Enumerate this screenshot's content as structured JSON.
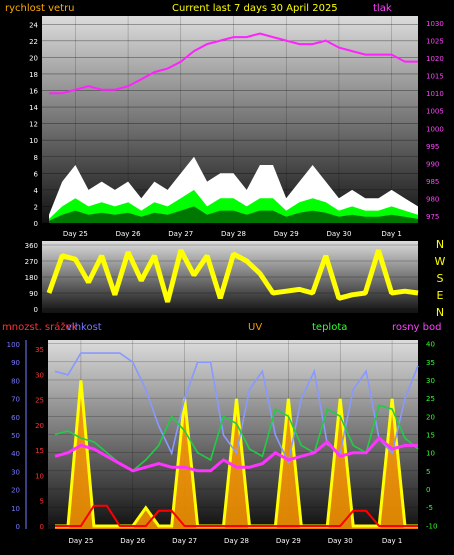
{
  "header": {
    "left_label": "rychlost vetru",
    "center_title": "Current last 7 days 30 April 2025",
    "right_label": "tlak"
  },
  "colors": {
    "wind_white": "#ffffff",
    "wind_green": "#00ff00",
    "wind_dark_green": "#007700",
    "pressure_magenta": "#ff22ff",
    "direction_yellow": "#ffff00",
    "uv_yellow": "#ffff00",
    "uv_orange": "#ff9900",
    "rain_red": "#ff0000",
    "humidity_blue": "#8899ff",
    "temperature_green": "#22cc44",
    "dewpoint_magenta": "#ff33ff",
    "label_orange": "#ffaa00",
    "label_green": "#33ff33",
    "label_red": "#ff3333",
    "label_blue": "#7777ff",
    "label_magenta": "#ff44ff"
  },
  "chart_data": [
    {
      "type": "area",
      "title": "Current last 7 days 30 April 2025",
      "left_axis_label": "rychlost vetru",
      "right_axis_label": "tlak",
      "x_ticks": [
        "Day 25",
        "Day 26",
        "Day 27",
        "Day 28",
        "Day 29",
        "Day 30",
        "Day 1"
      ],
      "y_left_ticks": [
        "0",
        "2",
        "4",
        "6",
        "8",
        "10",
        "12",
        "14",
        "16",
        "18",
        "20",
        "22",
        "24"
      ],
      "y_left_range": [
        0,
        25
      ],
      "y_right_ticks": [
        "975",
        "980",
        "985",
        "990",
        "995",
        "1000",
        "1005",
        "1010",
        "1015",
        "1020",
        "1025",
        "1030"
      ],
      "y_right_range": [
        973,
        1032
      ],
      "x_days": [
        0,
        0.25,
        0.5,
        0.75,
        1,
        1.25,
        1.5,
        1.75,
        2,
        2.25,
        2.5,
        2.75,
        3,
        3.25,
        3.5,
        3.75,
        4,
        4.25,
        4.5,
        4.75,
        5,
        5.25,
        5.5,
        5.75,
        6,
        6.25,
        6.5,
        6.75,
        7
      ],
      "series": [
        {
          "name": "gust",
          "values": [
            1,
            5,
            7,
            4,
            5,
            4,
            5,
            3,
            5,
            4,
            6,
            8,
            5,
            6,
            6,
            4,
            7,
            7,
            3,
            5,
            7,
            5,
            3,
            4,
            3,
            3,
            4,
            3,
            2
          ]
        },
        {
          "name": "average",
          "values": [
            0.5,
            2,
            3,
            2,
            2.5,
            2,
            2.5,
            1.5,
            2.5,
            2,
            3,
            4,
            2,
            3,
            3,
            2,
            3,
            3,
            1.5,
            2.5,
            3,
            2.5,
            1.5,
            2,
            1.5,
            1.5,
            2,
            1.5,
            1
          ]
        },
        {
          "name": "tlak",
          "values": [
            1010,
            1010,
            1011,
            1012,
            1011,
            1011,
            1012,
            1014,
            1016,
            1017,
            1019,
            1022,
            1024,
            1025,
            1026,
            1026,
            1027,
            1026,
            1025,
            1024,
            1024,
            1025,
            1023,
            1022,
            1021,
            1021,
            1021,
            1019,
            1019
          ]
        }
      ]
    },
    {
      "type": "line",
      "right_labels": [
        "N",
        "W",
        "S",
        "E",
        "N"
      ],
      "x_ticks": [
        "Day 25",
        "Day 26",
        "Day 27",
        "Day 28",
        "Day 29",
        "Day 30",
        "Day 1"
      ],
      "y_ticks": [
        "0",
        "90",
        "180",
        "270",
        "360"
      ],
      "y_range": [
        0,
        360
      ],
      "x_days": [
        0,
        0.25,
        0.5,
        0.75,
        1,
        1.25,
        1.5,
        1.75,
        2,
        2.25,
        2.5,
        2.75,
        3,
        3.25,
        3.5,
        3.75,
        4,
        4.25,
        4.5,
        4.75,
        5,
        5.25,
        5.5,
        5.75,
        6,
        6.25,
        6.5,
        6.75,
        7
      ],
      "series": [
        {
          "name": "direction",
          "values": [
            90,
            300,
            280,
            150,
            300,
            80,
            320,
            160,
            300,
            40,
            330,
            190,
            300,
            60,
            310,
            270,
            200,
            90,
            100,
            110,
            90,
            300,
            60,
            80,
            90,
            330,
            90,
            100,
            90
          ]
        }
      ]
    },
    {
      "type": "line",
      "left_labels": [
        "mnozst. srážek",
        "vlhkost"
      ],
      "center_labels": [
        "UV",
        "teplota",
        "rosny bod"
      ],
      "x_ticks": [
        "Day 25",
        "Day 26",
        "Day 27",
        "Day 28",
        "Day 29",
        "Day 30",
        "Day 1"
      ],
      "humidity_ticks": [
        "0",
        "10",
        "20",
        "30",
        "40",
        "50",
        "60",
        "70",
        "80",
        "90",
        "100"
      ],
      "rain_ticks": [
        "0",
        "5",
        "10",
        "15",
        "20",
        "25",
        "30",
        "35"
      ],
      "temperature_ticks": [
        "-10",
        "-5",
        "0",
        "5",
        "10",
        "15",
        "20",
        "25",
        "30",
        "35",
        "40"
      ],
      "temperature_range": [
        -11,
        41
      ],
      "x_days": [
        0,
        0.25,
        0.5,
        0.75,
        1,
        1.25,
        1.5,
        1.75,
        2,
        2.25,
        2.5,
        2.75,
        3,
        3.25,
        3.5,
        3.75,
        4,
        4.25,
        4.5,
        4.75,
        5,
        5.25,
        5.5,
        5.75,
        6,
        6.25,
        6.5,
        6.75,
        7
      ],
      "series": [
        {
          "name": "vlhkost",
          "values": [
            85,
            83,
            95,
            95,
            95,
            95,
            90,
            75,
            55,
            40,
            70,
            90,
            90,
            50,
            40,
            75,
            85,
            50,
            35,
            70,
            85,
            45,
            40,
            75,
            85,
            48,
            40,
            70,
            88
          ]
        },
        {
          "name": "teplota",
          "values": [
            15,
            16,
            14,
            13,
            10,
            7,
            5,
            8,
            12,
            20,
            16,
            10,
            8,
            20,
            18,
            11,
            9,
            22,
            20,
            12,
            10,
            22,
            20,
            12,
            10,
            23,
            22,
            14,
            11
          ]
        },
        {
          "name": "rosny bod",
          "values": [
            9,
            10,
            12,
            11,
            9,
            7,
            5,
            6,
            7,
            6,
            6,
            5,
            5,
            8,
            6,
            6,
            7,
            10,
            8,
            9,
            10,
            13,
            9,
            10,
            10,
            14,
            11,
            12,
            12
          ]
        },
        {
          "name": "UV",
          "values": [
            0,
            0,
            8,
            0,
            0,
            0,
            0,
            1,
            0,
            0,
            7,
            0,
            0,
            0,
            7,
            0,
            0,
            0,
            7,
            0,
            0,
            0,
            7,
            0,
            0,
            0,
            7,
            0,
            0
          ]
        },
        {
          "name": "mnozst. srážek",
          "values": [
            0,
            0,
            0,
            4,
            4,
            0,
            0,
            0,
            3,
            3,
            0,
            0,
            0,
            0,
            0,
            0,
            0,
            0,
            0,
            0,
            0,
            0,
            0,
            3,
            3,
            0,
            0,
            0,
            0
          ]
        }
      ]
    }
  ]
}
